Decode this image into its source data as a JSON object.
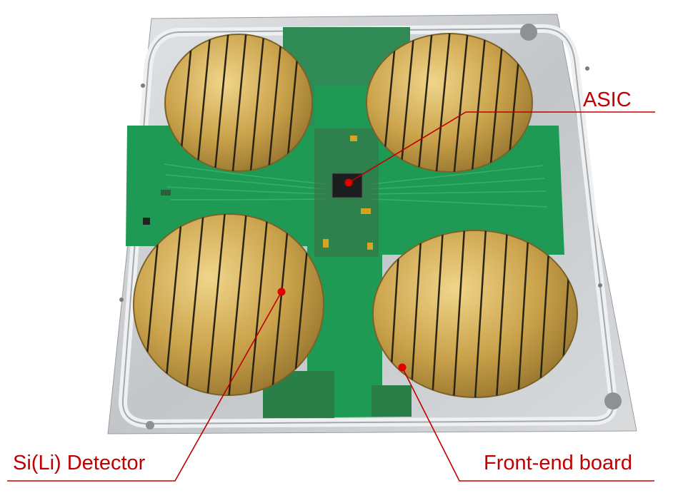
{
  "labels": {
    "asic": "ASIC",
    "detector": "Si(Li) Detector",
    "board": "Front-end board"
  },
  "colors": {
    "annotation": "#c00000",
    "plate": "#c9cbcd",
    "pcb": "#1f9a55",
    "gold": "#c9a24a"
  }
}
